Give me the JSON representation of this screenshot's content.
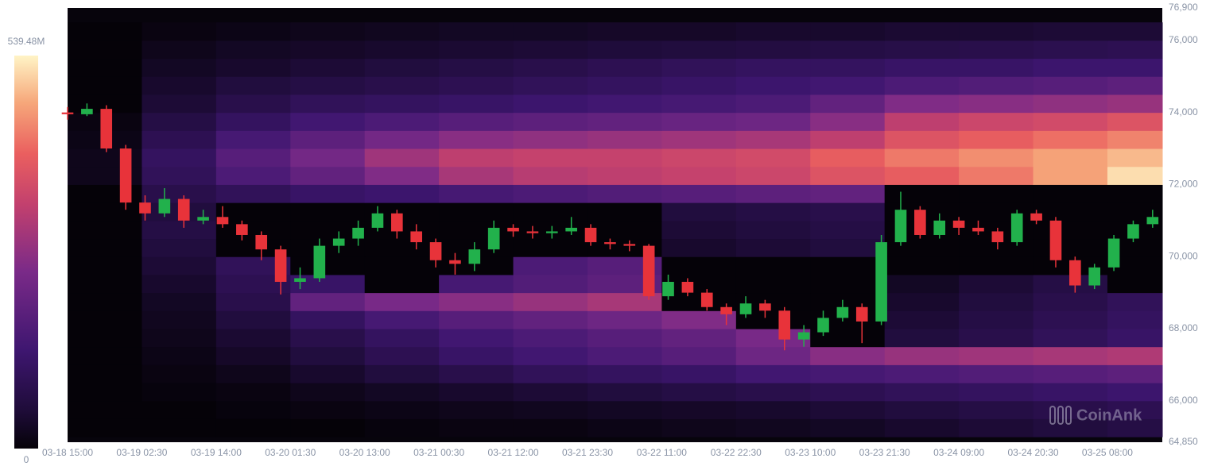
{
  "chart_data": {
    "type": "heatmap",
    "watermark": "CoinAnk",
    "xlim": [
      "03-18 15:00",
      "03-25 16:30"
    ],
    "xticks": [
      "03-18 15:00",
      "03-19 02:30",
      "03-19 14:00",
      "03-20 01:30",
      "03-20 13:00",
      "03-21 00:30",
      "03-21 12:00",
      "03-21 23:30",
      "03-22 11:00",
      "03-22 22:30",
      "03-23 10:00",
      "03-23 21:30",
      "03-24 09:00",
      "03-24 20:30",
      "03-25 08:00"
    ],
    "ylim": [
      64850,
      76900
    ],
    "yticks": [
      {
        "value": 64850,
        "label": "64,850"
      },
      {
        "value": 66000,
        "label": "66,000"
      },
      {
        "value": 68000,
        "label": "68,000"
      },
      {
        "value": 70000,
        "label": "70,000"
      },
      {
        "value": 72000,
        "label": "72,000"
      },
      {
        "value": 74000,
        "label": "74,000"
      },
      {
        "value": 76000,
        "label": "76,000"
      },
      {
        "value": 76900,
        "label": "76,900"
      }
    ],
    "clim": [
      0,
      539.48
    ],
    "cticks": [
      0,
      {
        "value": 539.48,
        "label": "539.48M"
      }
    ],
    "x": [
      "03-18 15:00",
      "03-19 02:30",
      "03-19 14:00",
      "03-20 01:30",
      "03-20 13:00",
      "03-21 00:30",
      "03-21 12:00",
      "03-21 23:30",
      "03-22 11:00",
      "03-22 22:30",
      "03-23 10:00",
      "03-23 21:30",
      "03-24 09:00",
      "03-24 20:30",
      "03-25 08:00"
    ],
    "ybins": [
      65000,
      65500,
      66000,
      66500,
      67000,
      67500,
      68000,
      68500,
      69000,
      69500,
      70000,
      70500,
      71000,
      71500,
      72000,
      72500,
      73000,
      73500,
      74000,
      74500,
      75000,
      75500,
      76000,
      76500
    ],
    "z": [
      [
        0,
        0,
        0,
        0,
        5,
        10,
        10,
        15,
        20,
        25,
        30,
        40,
        50,
        60,
        70
      ],
      [
        0,
        0,
        5,
        10,
        15,
        20,
        25,
        30,
        35,
        40,
        50,
        60,
        70,
        80,
        90
      ],
      [
        0,
        5,
        10,
        20,
        30,
        40,
        50,
        60,
        70,
        80,
        90,
        100,
        110,
        120,
        130
      ],
      [
        0,
        10,
        20,
        40,
        60,
        80,
        100,
        110,
        120,
        140,
        150,
        160,
        170,
        180,
        190
      ],
      [
        0,
        15,
        35,
        60,
        90,
        120,
        140,
        160,
        180,
        220,
        260,
        280,
        290,
        300,
        310
      ],
      [
        0,
        20,
        45,
        80,
        110,
        140,
        160,
        180,
        200,
        240,
        0,
        60,
        80,
        100,
        120
      ],
      [
        0,
        25,
        60,
        110,
        150,
        180,
        200,
        220,
        250,
        0,
        0,
        50,
        70,
        90,
        110
      ],
      [
        0,
        30,
        80,
        200,
        240,
        260,
        280,
        300,
        0,
        0,
        0,
        40,
        60,
        80,
        100
      ],
      [
        0,
        40,
        90,
        120,
        0,
        150,
        170,
        190,
        0,
        0,
        0,
        30,
        50,
        70,
        0
      ],
      [
        0,
        50,
        100,
        0,
        0,
        0,
        160,
        180,
        0,
        0,
        0,
        0,
        0,
        0,
        0
      ],
      [
        0,
        60,
        0,
        0,
        0,
        0,
        0,
        0,
        40,
        50,
        60,
        0,
        0,
        0,
        0
      ],
      [
        0,
        70,
        0,
        0,
        0,
        0,
        0,
        0,
        50,
        60,
        70,
        0,
        0,
        0,
        0
      ],
      [
        0,
        60,
        0,
        0,
        0,
        0,
        0,
        0,
        60,
        70,
        80,
        0,
        0,
        0,
        0
      ],
      [
        0,
        80,
        100,
        120,
        130,
        150,
        160,
        170,
        180,
        190,
        200,
        0,
        0,
        0,
        0
      ],
      [
        20,
        100,
        160,
        200,
        250,
        300,
        320,
        330,
        340,
        350,
        380,
        400,
        430,
        470,
        520
      ],
      [
        20,
        110,
        180,
        230,
        290,
        330,
        340,
        340,
        350,
        360,
        400,
        430,
        450,
        470,
        490
      ],
      [
        15,
        90,
        150,
        190,
        230,
        260,
        270,
        280,
        290,
        300,
        330,
        380,
        400,
        420,
        440
      ],
      [
        10,
        70,
        110,
        140,
        160,
        180,
        190,
        200,
        210,
        220,
        260,
        330,
        350,
        360,
        380
      ],
      [
        0,
        50,
        80,
        100,
        110,
        120,
        130,
        140,
        150,
        160,
        200,
        250,
        260,
        270,
        280
      ],
      [
        0,
        40,
        60,
        70,
        80,
        90,
        100,
        110,
        120,
        130,
        140,
        160,
        170,
        180,
        190
      ],
      [
        0,
        30,
        40,
        50,
        60,
        70,
        80,
        90,
        100,
        110,
        110,
        120,
        120,
        130,
        130
      ],
      [
        0,
        20,
        30,
        35,
        40,
        45,
        50,
        55,
        60,
        65,
        70,
        75,
        80,
        85,
        90
      ],
      [
        0,
        10,
        15,
        20,
        25,
        30,
        30,
        35,
        35,
        40,
        40,
        45,
        45,
        50,
        50
      ]
    ],
    "candles": {
      "up_color": "#22b14c",
      "down_color": "#e8333a",
      "x": [
        "03-18 15:00",
        "03-18 18:00",
        "03-18 21:00",
        "03-19 00:00",
        "03-19 03:00",
        "03-19 06:00",
        "03-19 09:00",
        "03-19 12:00",
        "03-19 15:00",
        "03-19 18:00",
        "03-19 21:00",
        "03-20 00:00",
        "03-20 03:00",
        "03-20 06:00",
        "03-20 09:00",
        "03-20 12:00",
        "03-20 15:00",
        "03-20 18:00",
        "03-20 21:00",
        "03-21 00:00",
        "03-21 03:00",
        "03-21 06:00",
        "03-21 09:00",
        "03-21 12:00",
        "03-21 15:00",
        "03-21 18:00",
        "03-21 21:00",
        "03-22 00:00",
        "03-22 03:00",
        "03-22 06:00",
        "03-22 09:00",
        "03-22 12:00",
        "03-22 15:00",
        "03-22 18:00",
        "03-22 21:00",
        "03-23 00:00",
        "03-23 03:00",
        "03-23 06:00",
        "03-23 09:00",
        "03-23 12:00",
        "03-23 15:00",
        "03-23 18:00",
        "03-23 21:00",
        "03-24 00:00",
        "03-24 03:00",
        "03-24 06:00",
        "03-24 09:00",
        "03-24 12:00",
        "03-24 15:00",
        "03-24 18:00",
        "03-24 21:00",
        "03-25 00:00",
        "03-25 03:00",
        "03-25 06:00",
        "03-25 09:00",
        "03-25 12:00",
        "03-25 15:00"
      ],
      "open": [
        74000,
        73950,
        74100,
        73000,
        71500,
        71200,
        71600,
        71000,
        71100,
        70900,
        70600,
        70200,
        69300,
        69400,
        70300,
        70500,
        70800,
        71200,
        70700,
        70400,
        69900,
        69800,
        70200,
        70800,
        70700,
        70650,
        70700,
        70800,
        70400,
        70350,
        70300,
        68900,
        69300,
        69000,
        68600,
        68400,
        68700,
        68500,
        67700,
        67900,
        68300,
        68600,
        68200,
        70400,
        71300,
        70600,
        71000,
        70800,
        70700,
        70400,
        71200,
        71000,
        69900,
        69200,
        69700,
        70500,
        70900
      ],
      "high": [
        74150,
        74250,
        74200,
        73100,
        71700,
        71900,
        71700,
        71300,
        71400,
        71000,
        70700,
        70300,
        69700,
        70500,
        70700,
        71000,
        71400,
        71300,
        70900,
        70500,
        70100,
        70400,
        71000,
        70900,
        70850,
        70850,
        71100,
        70900,
        70500,
        70450,
        70350,
        69500,
        69400,
        69100,
        68700,
        68900,
        68800,
        68600,
        68100,
        68500,
        68800,
        68700,
        70600,
        71800,
        71400,
        71200,
        71100,
        71000,
        70800,
        71300,
        71300,
        71100,
        70000,
        69800,
        70600,
        71000,
        71300
      ],
      "low": [
        73800,
        73900,
        72900,
        71300,
        71000,
        71100,
        70800,
        70900,
        70800,
        70450,
        69900,
        68950,
        69100,
        69300,
        70100,
        70300,
        70700,
        70500,
        70200,
        69700,
        69500,
        69600,
        70100,
        70550,
        70500,
        70500,
        70600,
        70300,
        70200,
        70150,
        68800,
        68800,
        68900,
        68500,
        68100,
        68300,
        68300,
        67400,
        67500,
        67800,
        68200,
        67600,
        68100,
        70300,
        70500,
        70500,
        70600,
        70600,
        70200,
        70300,
        70900,
        69700,
        69000,
        69100,
        69600,
        70400,
        70800
      ],
      "close": [
        73950,
        74100,
        73000,
        71500,
        71200,
        71600,
        71000,
        71100,
        70900,
        70600,
        70200,
        69300,
        69400,
        70300,
        70500,
        70800,
        71200,
        70700,
        70400,
        69900,
        69800,
        70200,
        70800,
        70700,
        70650,
        70700,
        70800,
        70400,
        70350,
        70300,
        68900,
        69300,
        69000,
        68600,
        68400,
        68700,
        68500,
        67700,
        67900,
        68300,
        68600,
        68200,
        70400,
        71300,
        70600,
        71000,
        70800,
        70700,
        70400,
        71200,
        71000,
        69900,
        69200,
        69700,
        70500,
        70900,
        71100
      ]
    }
  }
}
